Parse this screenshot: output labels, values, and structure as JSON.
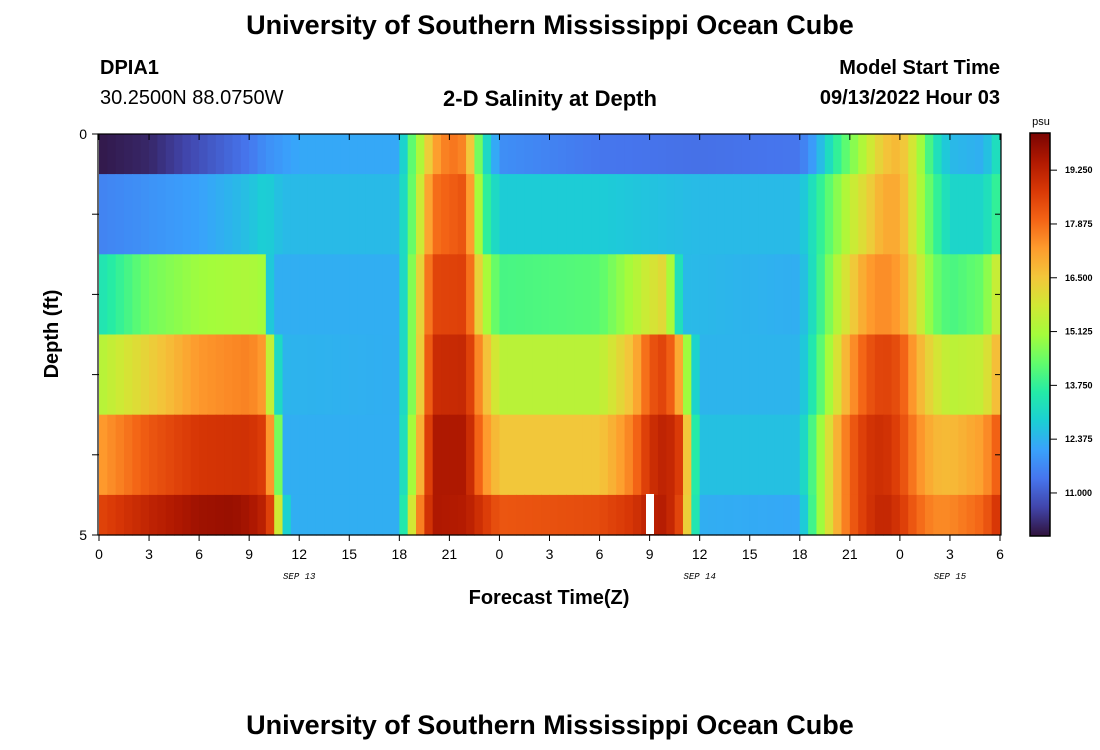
{
  "header": {
    "title": "University of Southern Mississippi Ocean Cube",
    "station": "DPIA1",
    "coords": "30.2500N  88.0750W",
    "subtitle": "2-D Salinity at Depth",
    "start_label": "Model Start Time",
    "start_value": "09/13/2022 Hour 03"
  },
  "footer": {
    "title": "University of Southern Mississippi Ocean Cube"
  },
  "colors": {
    "colormap": [
      "#30123b",
      "#4145ab",
      "#4675ed",
      "#39a2fc",
      "#1bcfd4",
      "#24eca6",
      "#61fc6c",
      "#a4fc3b",
      "#d1e834",
      "#f3c63a",
      "#fe9b2d",
      "#f36315",
      "#d93806",
      "#b11901",
      "#7a0402"
    ]
  },
  "chart_data": {
    "type": "heatmap",
    "title": "2-D Salinity at Depth",
    "xlabel": "Forecast Time(Z)",
    "ylabel": "Depth (ft)",
    "x_hours": [
      0,
      54
    ],
    "depth_range": [
      0,
      5
    ],
    "x_tick_labels": [
      "0",
      "3",
      "6",
      "9",
      "12",
      "15",
      "18",
      "21",
      "0",
      "3",
      "6",
      "9",
      "12",
      "15",
      "18",
      "21",
      "0",
      "3",
      "6"
    ],
    "date_labels": [
      {
        "label": "SEP 13",
        "hour": 12
      },
      {
        "label": "SEP 14",
        "hour": 36
      },
      {
        "label": "SEP 15",
        "hour": 51
      }
    ],
    "y_tick_labels": [
      "0",
      "5"
    ],
    "colorbar": {
      "unit": "psu",
      "range": [
        9.9,
        20.2
      ],
      "ticks": [
        "19.250",
        "17.875",
        "16.500",
        "15.125",
        "13.750",
        "12.375",
        "11.000"
      ]
    },
    "layers": [
      {
        "depth": "0-0.5",
        "keys": [
          [
            0,
            10.0
          ],
          [
            3,
            10.2
          ],
          [
            6,
            10.8
          ],
          [
            9,
            11.4
          ],
          [
            10,
            11.8
          ],
          [
            12,
            12.2
          ],
          [
            18,
            12.2
          ],
          [
            18.6,
            14
          ],
          [
            19.4,
            15.5
          ],
          [
            20,
            17
          ],
          [
            21,
            17.8
          ],
          [
            22,
            17.5
          ],
          [
            23,
            13.5
          ],
          [
            24,
            11.8
          ],
          [
            30,
            11.4
          ],
          [
            36,
            11.3
          ],
          [
            42,
            11.4
          ],
          [
            43,
            12.2
          ],
          [
            44,
            13.5
          ],
          [
            45,
            14.5
          ],
          [
            46,
            15.5
          ],
          [
            47,
            16.5
          ],
          [
            48,
            16.8
          ],
          [
            49,
            15.5
          ],
          [
            50,
            13.5
          ],
          [
            51,
            12.5
          ],
          [
            53,
            12.3
          ],
          [
            54,
            13.5
          ]
        ]
      },
      {
        "depth": "0.5-1.5",
        "keys": [
          [
            0,
            11.6
          ],
          [
            6,
            12.1
          ],
          [
            9,
            12.6
          ],
          [
            10,
            12.9
          ],
          [
            11,
            12.5
          ],
          [
            18,
            12.5
          ],
          [
            19,
            15
          ],
          [
            20,
            17.8
          ],
          [
            22,
            18.3
          ],
          [
            23,
            14
          ],
          [
            24,
            12.8
          ],
          [
            30,
            12.8
          ],
          [
            36,
            12.5
          ],
          [
            42,
            12.5
          ],
          [
            43,
            13.5
          ],
          [
            44,
            14.5
          ],
          [
            45,
            15.5
          ],
          [
            46,
            16.2
          ],
          [
            47,
            17
          ],
          [
            48,
            17
          ],
          [
            49,
            15.5
          ],
          [
            50,
            14
          ],
          [
            51,
            13
          ],
          [
            53,
            13
          ],
          [
            54,
            14
          ]
        ]
      },
      {
        "depth": "1.5-2.5",
        "keys": [
          [
            0,
            13.3
          ],
          [
            3,
            14.5
          ],
          [
            6,
            15
          ],
          [
            9,
            15.2
          ],
          [
            10,
            15
          ],
          [
            10.3,
            12.3
          ],
          [
            18,
            12.3
          ],
          [
            19,
            15.5
          ],
          [
            20,
            18.5
          ],
          [
            22,
            18.6
          ],
          [
            23,
            15.5
          ],
          [
            24,
            14
          ],
          [
            30,
            14.2
          ],
          [
            32,
            15.2
          ],
          [
            33,
            15.8
          ],
          [
            34,
            16.2
          ],
          [
            34.5,
            14
          ],
          [
            35,
            12.5
          ],
          [
            42,
            12.3
          ],
          [
            43,
            13.5
          ],
          [
            44,
            15
          ],
          [
            45,
            16.2
          ],
          [
            46,
            17.2
          ],
          [
            47,
            17.5
          ],
          [
            48,
            17.2
          ],
          [
            49,
            16
          ],
          [
            50,
            14.5
          ],
          [
            51,
            14
          ],
          [
            53,
            14.4
          ],
          [
            54,
            16
          ]
        ]
      },
      {
        "depth": "2.5-3.5",
        "keys": [
          [
            0,
            15.3
          ],
          [
            3,
            16.3
          ],
          [
            6,
            17.3
          ],
          [
            9,
            17.6
          ],
          [
            10,
            17.2
          ],
          [
            10.5,
            13.8
          ],
          [
            11,
            12.4
          ],
          [
            18,
            12.3
          ],
          [
            19,
            15.5
          ],
          [
            20,
            19
          ],
          [
            22,
            19.1
          ],
          [
            23,
            17
          ],
          [
            24,
            15.4
          ],
          [
            30,
            15.4
          ],
          [
            31,
            16
          ],
          [
            32,
            16.7
          ],
          [
            33,
            18.2
          ],
          [
            34,
            18.6
          ],
          [
            35,
            16.5
          ],
          [
            35.5,
            13.5
          ],
          [
            36,
            12.4
          ],
          [
            42,
            12.4
          ],
          [
            43,
            13.8
          ],
          [
            44,
            15.5
          ],
          [
            45,
            17.2
          ],
          [
            46,
            18.2
          ],
          [
            47,
            18.6
          ],
          [
            48,
            18.3
          ],
          [
            49,
            17
          ],
          [
            50,
            16
          ],
          [
            51,
            15.4
          ],
          [
            53,
            15.6
          ],
          [
            54,
            17
          ]
        ]
      },
      {
        "depth": "3.5-4.5",
        "keys": [
          [
            0,
            17.2
          ],
          [
            3,
            18.2
          ],
          [
            6,
            18.8
          ],
          [
            9,
            18.9
          ],
          [
            10,
            18.6
          ],
          [
            10.7,
            15
          ],
          [
            11,
            12.3
          ],
          [
            18,
            12.3
          ],
          [
            19,
            16
          ],
          [
            20,
            19.5
          ],
          [
            22,
            19.5
          ],
          [
            23,
            17.5
          ],
          [
            24,
            16.5
          ],
          [
            30,
            16.5
          ],
          [
            31,
            17
          ],
          [
            32,
            17.7
          ],
          [
            33,
            18.9
          ],
          [
            34,
            19.3
          ],
          [
            35,
            18.5
          ],
          [
            35.5,
            14.5
          ],
          [
            36,
            12.6
          ],
          [
            42,
            12.6
          ],
          [
            43,
            14.5
          ],
          [
            44,
            16.5
          ],
          [
            45,
            18
          ],
          [
            46,
            18.8
          ],
          [
            47,
            19
          ],
          [
            48,
            18.5
          ],
          [
            49,
            17.5
          ],
          [
            50,
            16.8
          ],
          [
            51,
            16.7
          ],
          [
            53,
            17.2
          ],
          [
            54,
            18.3
          ]
        ]
      },
      {
        "depth": "4.5-5",
        "keys": [
          [
            0,
            18.5
          ],
          [
            3,
            19.2
          ],
          [
            6,
            19.7
          ],
          [
            8,
            19.8
          ],
          [
            9,
            19.6
          ],
          [
            10,
            19.2
          ],
          [
            10.5,
            18
          ],
          [
            11,
            13.5
          ],
          [
            11.5,
            12.3
          ],
          [
            18,
            12.3
          ],
          [
            19,
            17
          ],
          [
            20,
            19.5
          ],
          [
            22,
            19.4
          ],
          [
            23,
            18.8
          ],
          [
            24,
            18.2
          ],
          [
            30,
            18.4
          ],
          [
            32,
            18.8
          ],
          [
            33,
            19.3
          ],
          [
            34,
            19.4
          ],
          [
            35,
            18.2
          ],
          [
            35.5,
            14.5
          ],
          [
            36,
            12.3
          ],
          [
            42,
            12.2
          ],
          [
            43,
            14.5
          ],
          [
            44,
            16.5
          ],
          [
            45,
            18
          ],
          [
            46,
            18.8
          ],
          [
            47,
            19.2
          ],
          [
            48,
            18.8
          ],
          [
            49,
            18
          ],
          [
            50,
            17.5
          ],
          [
            51,
            17.5
          ],
          [
            53,
            18
          ],
          [
            54,
            19
          ]
        ]
      }
    ]
  }
}
